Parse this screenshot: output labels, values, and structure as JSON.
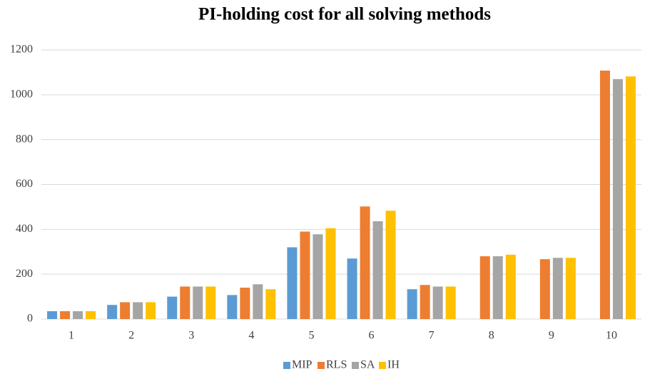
{
  "chart_data": {
    "type": "bar",
    "title": "PI-holding cost for all solving methods",
    "categories": [
      "1",
      "2",
      "3",
      "4",
      "5",
      "6",
      "7",
      "8",
      "9",
      "10"
    ],
    "series": [
      {
        "name": "MIP",
        "color": "#5b9bd5",
        "values": [
          35,
          63,
          100,
          107,
          320,
          270,
          133,
          null,
          null,
          null
        ]
      },
      {
        "name": "RLS",
        "color": "#ed7d31",
        "values": [
          35,
          75,
          145,
          140,
          390,
          502,
          152,
          280,
          267,
          1108
        ]
      },
      {
        "name": "SA",
        "color": "#a5a5a5",
        "values": [
          35,
          75,
          145,
          155,
          378,
          436,
          145,
          280,
          273,
          1070
        ]
      },
      {
        "name": "IH",
        "color": "#ffc000",
        "values": [
          35,
          75,
          145,
          133,
          405,
          483,
          145,
          287,
          273,
          1082
        ]
      }
    ],
    "ylim": [
      0,
      1200
    ],
    "yticks": [
      0,
      200,
      400,
      600,
      800,
      1000,
      1200
    ],
    "grid": true,
    "legend": "bottom"
  }
}
